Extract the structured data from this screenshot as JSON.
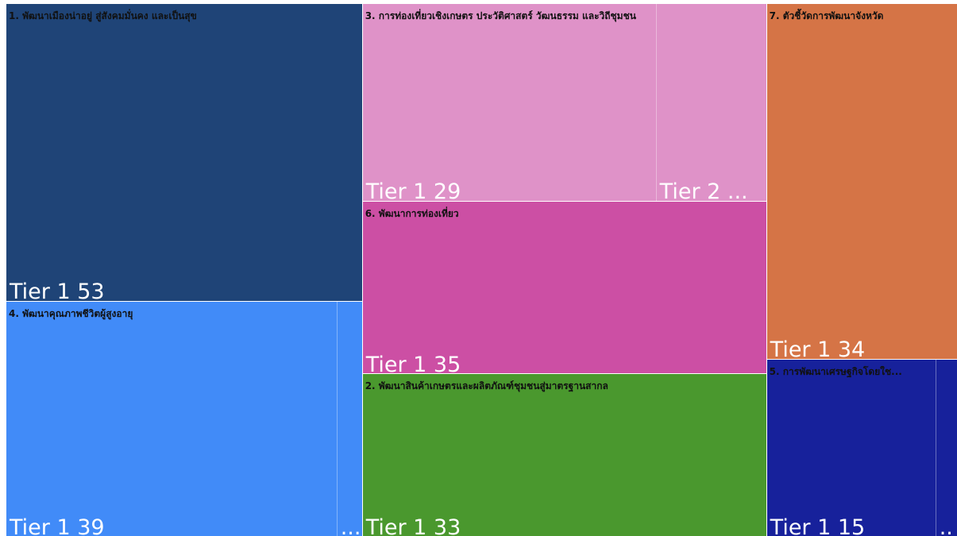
{
  "chart_data": {
    "type": "treemap",
    "groups": [
      {
        "name": "1. พัฒนาเมืองน่าอยู่ สู่สังคมมั่นคง และเป็นสุข",
        "color": "#1f4477",
        "leaves": [
          {
            "label": "Tier 1 53",
            "value": 53
          }
        ]
      },
      {
        "name": "4. พัฒนาคุณภาพชีวิตผู้สูงอายุ",
        "color": "#418bf8",
        "leaves": [
          {
            "label": "Tier 1 39",
            "value": 39
          },
          {
            "label": "...",
            "value": 3
          }
        ]
      },
      {
        "name": "3. การท่องเที่ยวเชิงเกษตร ประวัติศาสตร์ วัฒนธรรม และวิถีชุมชน",
        "color": "#df92c8",
        "leaves": [
          {
            "label": "Tier 1 29",
            "value": 29
          },
          {
            "label": "Tier 2 ...",
            "value": 11
          }
        ]
      },
      {
        "name": "6. พัฒนาการท่องเที่ยว",
        "color": "#cc4fa4",
        "leaves": [
          {
            "label": "Tier 1 35",
            "value": 35
          }
        ]
      },
      {
        "name": "2. พัฒนาสินค้าเกษตรและผลิตภัณฑ์ชุมชนสู่มาตรฐานสากล",
        "color": "#4a982e",
        "leaves": [
          {
            "label": "Tier 1 33",
            "value": 33
          }
        ]
      },
      {
        "name": "7. ตัวชี้วัดการพัฒนาจังหวัด",
        "color": "#d57446",
        "leaves": [
          {
            "label": "Tier 1 34",
            "value": 34
          }
        ]
      },
      {
        "name": "5. การพัฒนาเศรษฐกิจโดยใช...",
        "color": "#17219b",
        "leaves": [
          {
            "label": "Tier 1 15",
            "value": 15
          },
          {
            "label": "..",
            "value": 2
          }
        ]
      }
    ]
  }
}
